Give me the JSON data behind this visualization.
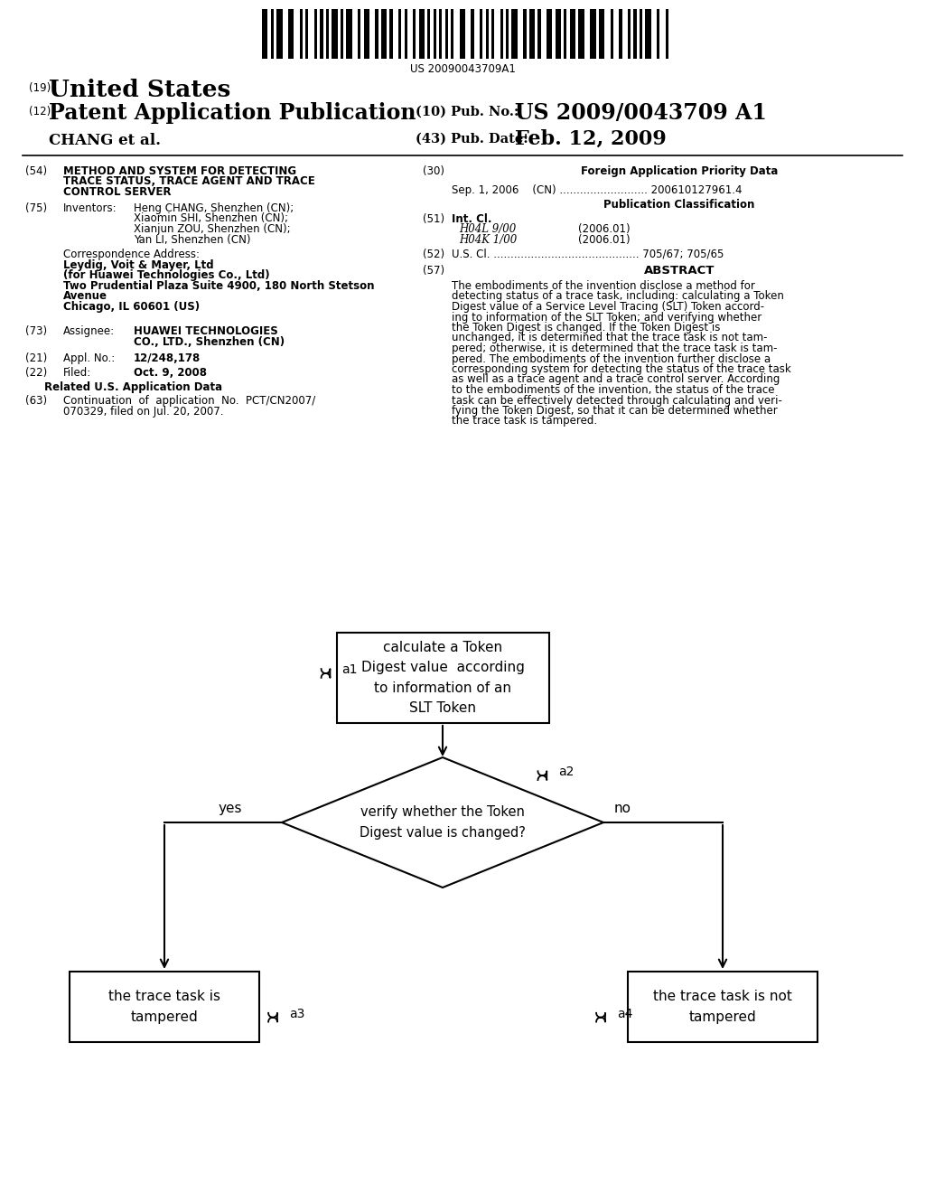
{
  "bg_color": "#ffffff",
  "barcode_text": "US 20090043709A1",
  "title_19": "(19)",
  "title_us": "United States",
  "title_12": "(12)",
  "title_patent": "Patent Application Publication",
  "title_10": "(10) Pub. No.:",
  "pub_no": "US 2009/0043709 A1",
  "title_43": "(43) Pub. Date:",
  "pub_date": "Feb. 12, 2009",
  "inventor_name": "CHANG et al.",
  "section_54_num": "(54)",
  "section_54_text": "METHOD AND SYSTEM FOR DETECTING\nTRACE STATUS, TRACE AGENT AND TRACE\nCONTROL SERVER",
  "section_75_num": "(75)",
  "section_75_label": "Inventors:",
  "section_75_inventors": "Heng CHANG, Shenzhen (CN);\nXiaomin SHI, Shenzhen (CN);\nXianjun ZOU, Shenzhen (CN);\nYan LI, Shenzhen (CN)",
  "corr_label": "Correspondence Address:",
  "corr_line1": "Leydig, Voit & Mayer, Ltd",
  "corr_line2": "(for Huawei Technologies Co., Ltd)",
  "corr_line3": "Two Prudential Plaza Suite 4900, 180 North Stetson",
  "corr_line4": "Avenue",
  "corr_line5": "Chicago, IL 60601 (US)",
  "section_73_num": "(73)",
  "section_73_label": "Assignee:",
  "section_73_text": "HUAWEI TECHNOLOGIES\nCO., LTD., Shenzhen (CN)",
  "section_21_num": "(21)",
  "section_21_label": "Appl. No.:",
  "section_21_text": "12/248,178",
  "section_22_num": "(22)",
  "section_22_label": "Filed:",
  "section_22_text": "Oct. 9, 2008",
  "related_title": "Related U.S. Application Data",
  "section_63_num": "(63)",
  "section_63_text": "Continuation  of  application  No.  PCT/CN2007/\n070329, filed on Jul. 20, 2007.",
  "section_30_num": "(30)",
  "section_30_title": "Foreign Application Priority Data",
  "foreign_app": "Sep. 1, 2006    (CN) .......................... 200610127961.4",
  "pub_class_title": "Publication Classification",
  "section_51_num": "(51)",
  "section_51_label": "Int. Cl.",
  "int_cl_1": "H04L 9/00",
  "int_cl_1_year": "(2006.01)",
  "int_cl_2": "H04K 1/00",
  "int_cl_2_year": "(2006.01)",
  "section_52_num": "(52)",
  "section_52_text": "U.S. Cl. ........................................... 705/67; 705/65",
  "section_57_num": "(57)",
  "section_57_title": "ABSTRACT",
  "abstract_lines": [
    "The embodiments of the invention disclose a method for",
    "detecting status of a trace task, including: calculating a Token",
    "Digest value of a Service Level Tracing (SLT) Token accord-",
    "ing to information of the SLT Token; and verifying whether",
    "the Token Digest is changed. If the Token Digest is",
    "unchanged, it is determined that the trace task is not tam-",
    "pered; otherwise, it is determined that the trace task is tam-",
    "pered. The embodiments of the invention further disclose a",
    "corresponding system for detecting the status of the trace task",
    "as well as a trace agent and a trace control server. According",
    "to the embodiments of the invention, the status of the trace",
    "task can be effectively detected through calculating and veri-",
    "fying the Token Digest, so that it can be determined whether",
    "the trace task is tampered."
  ],
  "flowchart": {
    "box1_text": "calculate a Token\nDigest value  according\nto information of an\nSLT Token",
    "diamond_text": "verify whether the Token\nDigest value is changed?",
    "box2_text": "the trace task is\ntampered",
    "box3_text": "the trace task is not\ntampered",
    "label_a1": "a1",
    "label_a2": "a2",
    "label_a3": "a3",
    "label_a4": "a4",
    "label_yes": "yes",
    "label_no": "no"
  }
}
